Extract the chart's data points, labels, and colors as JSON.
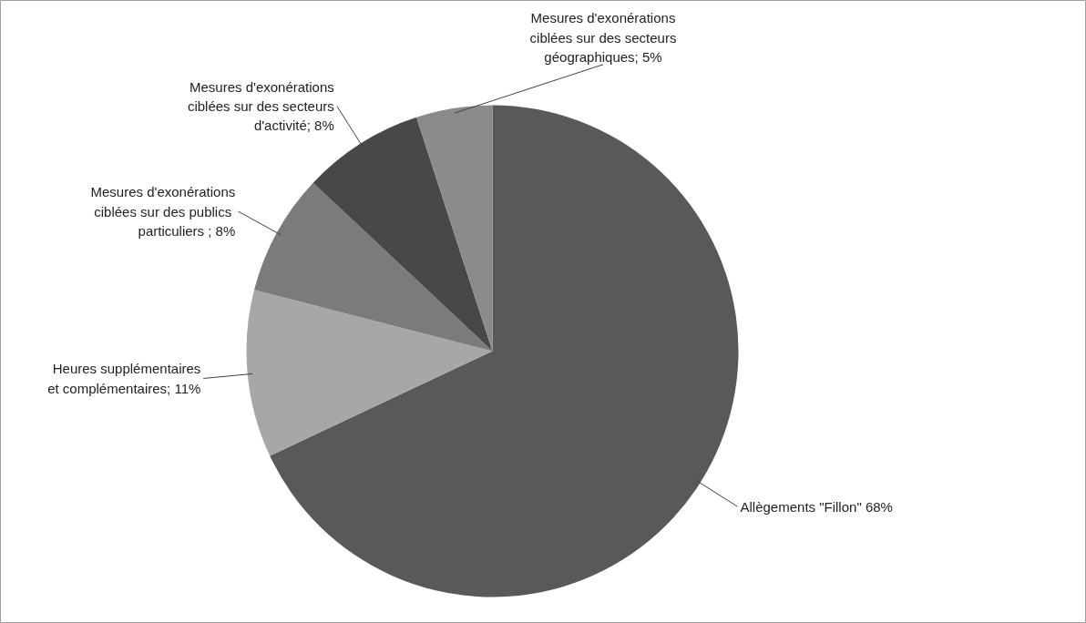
{
  "chart_data": {
    "type": "pie",
    "categories": [
      "Allègements \"Fillon\"",
      "Heures supplémentaires\net complémentaires",
      "Mesures d'exonérations\nciblées sur des  publics\nparticuliers",
      "Mesures d'exonérations\nciblées sur des secteurs\nd'activité",
      "Mesures d'exonérations\nciblées sur des secteurs\ngéographiques"
    ],
    "value_labels": [
      " 68%",
      "; 11%",
      " ; 8%",
      "; 8%",
      "; 5%"
    ],
    "values": [
      68,
      11,
      8,
      8,
      5
    ],
    "colors": [
      "#57595b",
      "#a6a7a7",
      "#7a7b7d",
      "#46484a",
      "#8a8b8c"
    ]
  }
}
